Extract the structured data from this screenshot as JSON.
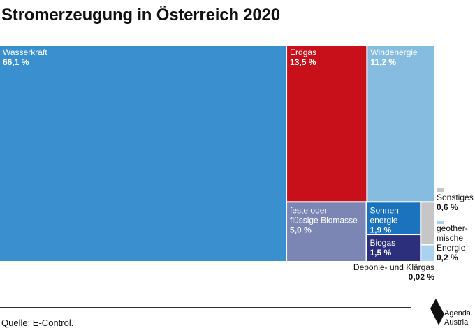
{
  "header": {
    "title": "Stromerzeugung in Österreich 2020"
  },
  "footer": {
    "source": "Quelle: E-Control."
  },
  "logo": {
    "line1": "Agenda",
    "line2": "Austria"
  },
  "chart_data": {
    "type": "treemap",
    "title": "Stromerzeugung in Österreich 2020",
    "unit": "%",
    "items": [
      {
        "key": "wasserkraft",
        "lines": [
          "Wasserkraft"
        ],
        "value": 66.1,
        "label": "66,1 %",
        "color": "#3a8fcf"
      },
      {
        "key": "erdgas",
        "lines": [
          "Erdgas"
        ],
        "value": 13.5,
        "label": "13,5 %",
        "color": "#c8101a"
      },
      {
        "key": "windenergie",
        "lines": [
          "Windenergie"
        ],
        "value": 11.2,
        "label": "11,2 %",
        "color": "#85bce0"
      },
      {
        "key": "biomasse",
        "lines": [
          "feste oder",
          "flüssige Biomasse"
        ],
        "value": 5.0,
        "label": "5,0 %",
        "color": "#7b86b4"
      },
      {
        "key": "sonnenenergie",
        "lines": [
          "Sonnen-",
          "energie"
        ],
        "value": 1.9,
        "label": "1,9 %",
        "color": "#1b73bd"
      },
      {
        "key": "biogas",
        "lines": [
          "Biogas"
        ],
        "value": 1.5,
        "label": "1,5 %",
        "color": "#2b2f7c"
      },
      {
        "key": "sonstiges",
        "lines": [
          "Sonstiges"
        ],
        "value": 0.6,
        "label": "0,6 %",
        "color": "#c6c6c6"
      },
      {
        "key": "geothermie",
        "lines": [
          "geother-",
          "mische",
          "Energie"
        ],
        "value": 0.2,
        "label": "0,2 %",
        "color": "#aad2ee"
      },
      {
        "key": "deponie",
        "lines": [
          "Deponie- und Klärgas"
        ],
        "value": 0.02,
        "label": "0,02 %",
        "color": "#aad2ee"
      }
    ]
  }
}
